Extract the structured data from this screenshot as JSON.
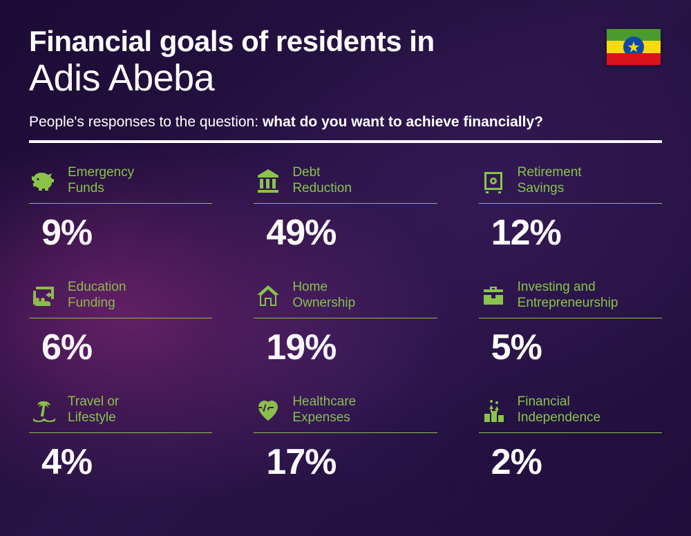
{
  "type": "infographic",
  "background_colors": [
    "#1a0b33",
    "#2a1548",
    "#1f0e3a"
  ],
  "accent_color": "#8bc34a",
  "text_color": "#ffffff",
  "title_fontsize": 42,
  "city_fontsize": 54,
  "subtitle_fontsize": 21,
  "label_fontsize": 19,
  "value_fontsize": 52,
  "header": {
    "title_line1": "Financial goals of residents in",
    "title_line2": "Adis Abeba",
    "subtitle_prefix": "People's responses to the question: ",
    "subtitle_bold": "what do you want to achieve financially?"
  },
  "flag": {
    "stripes": [
      "#4a9b2e",
      "#f8d90f",
      "#da121a"
    ],
    "emblem_bg": "#0f47af",
    "emblem_star": "#f8d90f"
  },
  "divider_color": "#ffffff",
  "underline_color": "#8bc34a",
  "items": [
    {
      "icon": "piggy-bank-icon",
      "label_l1": "Emergency",
      "label_l2": "Funds",
      "value": "9%"
    },
    {
      "icon": "bank-icon",
      "label_l1": "Debt",
      "label_l2": "Reduction",
      "value": "49%"
    },
    {
      "icon": "safe-icon",
      "label_l1": "Retirement",
      "label_l2": "Savings",
      "value": "12%"
    },
    {
      "icon": "education-icon",
      "label_l1": "Education",
      "label_l2": "Funding",
      "value": "6%"
    },
    {
      "icon": "house-icon",
      "label_l1": "Home",
      "label_l2": "Ownership",
      "value": "19%"
    },
    {
      "icon": "briefcase-icon",
      "label_l1": "Investing and",
      "label_l2": "Entrepreneurship",
      "value": "5%"
    },
    {
      "icon": "palm-icon",
      "label_l1": "Travel or",
      "label_l2": "Lifestyle",
      "value": "4%"
    },
    {
      "icon": "heart-pulse-icon",
      "label_l1": "Healthcare",
      "label_l2": "Expenses",
      "value": "17%"
    },
    {
      "icon": "podium-icon",
      "label_l1": "Financial",
      "label_l2": "Independence",
      "value": "2%"
    }
  ]
}
